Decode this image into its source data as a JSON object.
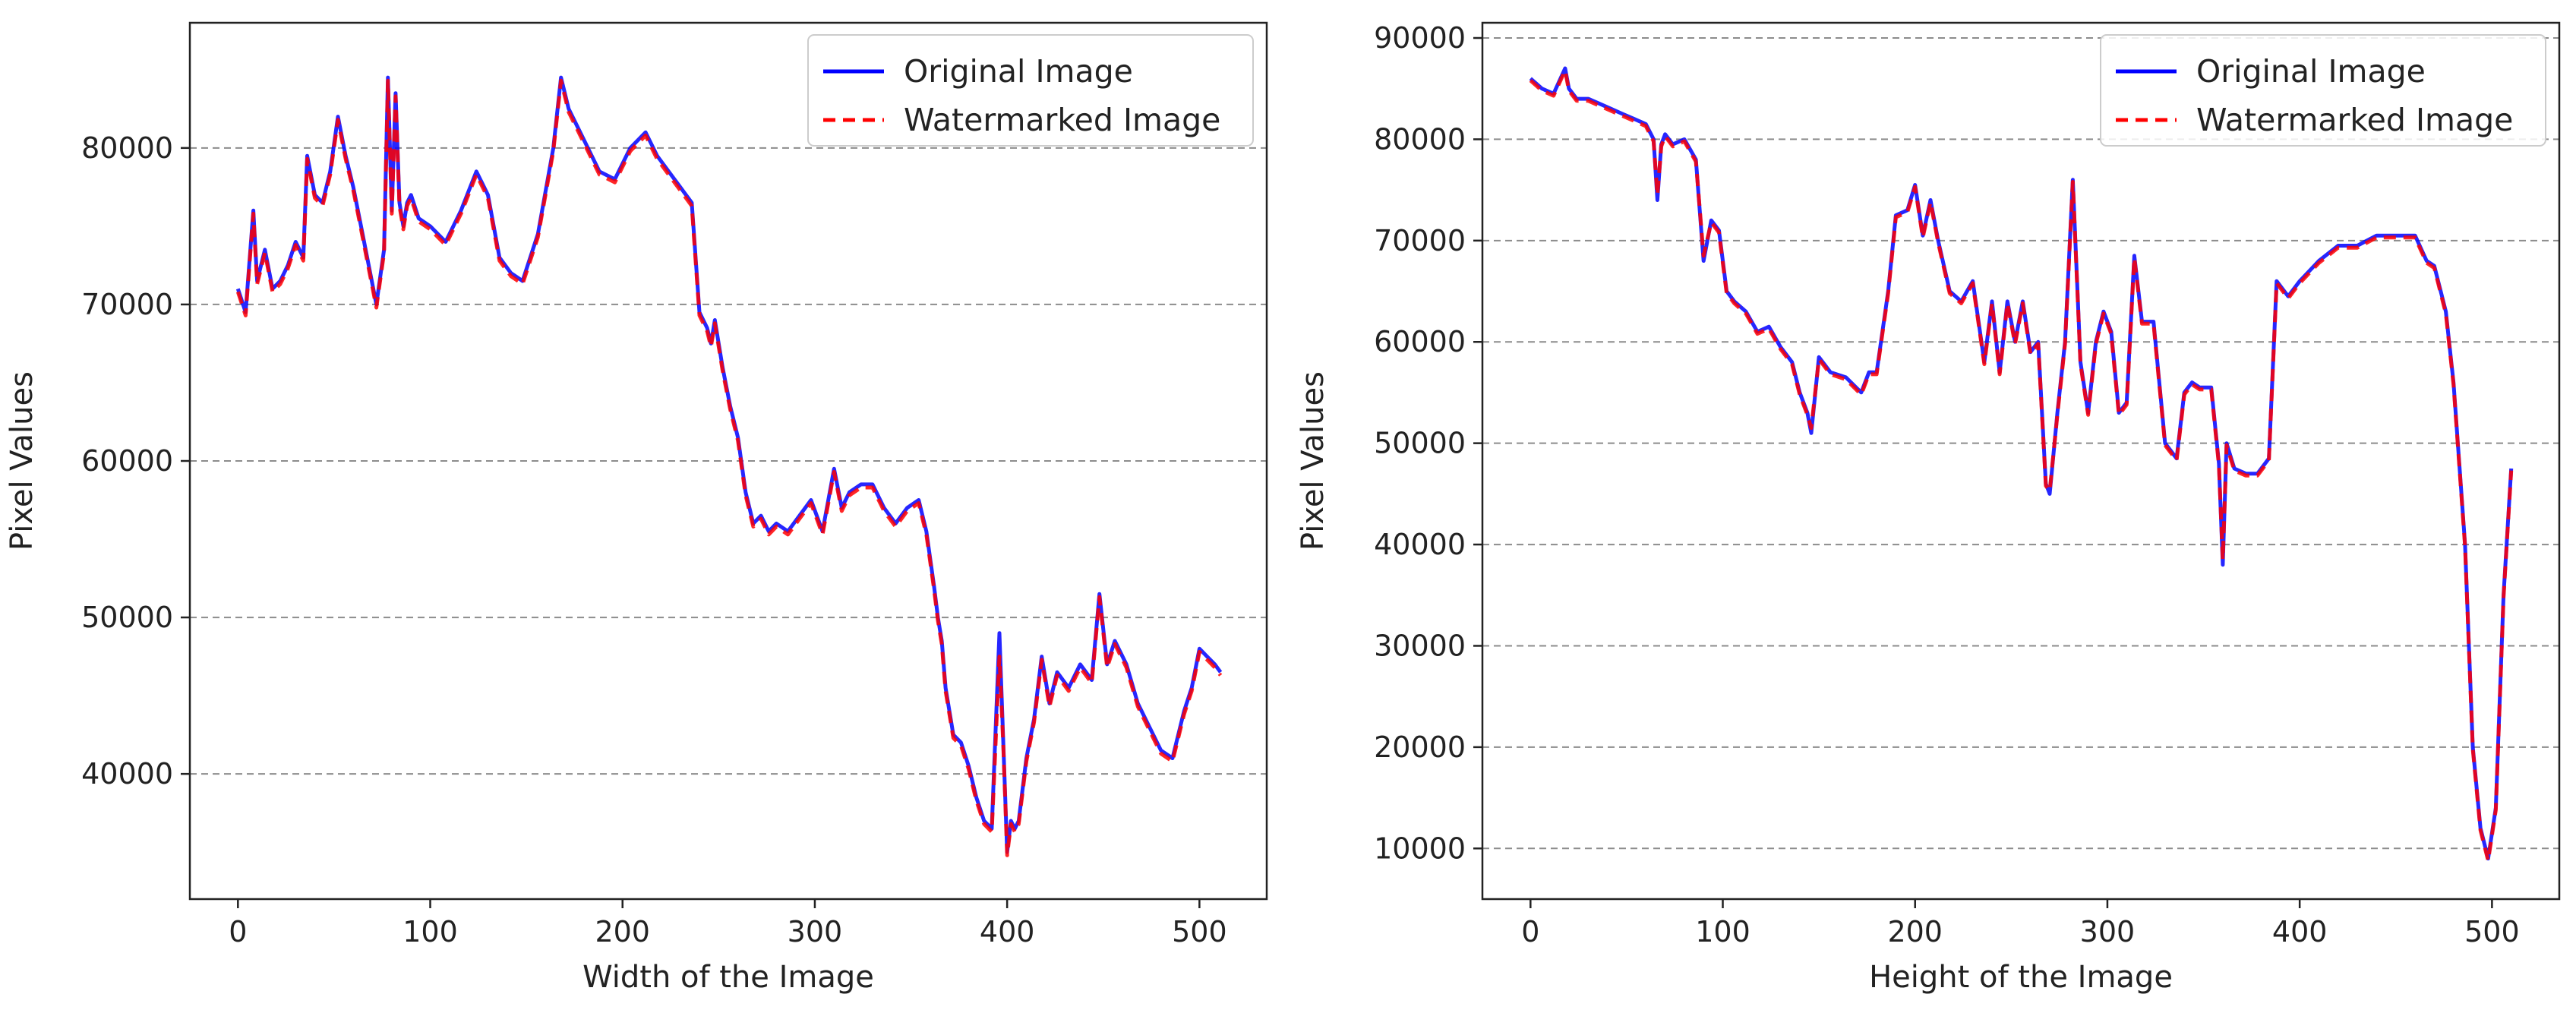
{
  "chart_data": [
    {
      "type": "line",
      "xlabel": "Width of the Image",
      "ylabel": "Pixel Values",
      "xlim": [
        -25,
        535
      ],
      "ylim": [
        32000,
        88000
      ],
      "xticks": [
        0,
        100,
        200,
        300,
        400,
        500
      ],
      "yticks": [
        40000,
        50000,
        60000,
        70000,
        80000
      ],
      "ytick_labels": [
        "40000",
        "50000",
        "60000",
        "70000",
        "80000"
      ],
      "grid": "horizontal dashed",
      "legend_position": "top-right",
      "series": [
        {
          "name": "Original Image",
          "color": "#0000ff",
          "style": "solid",
          "x": [
            0,
            4,
            8,
            10,
            14,
            18,
            22,
            26,
            30,
            34,
            36,
            40,
            44,
            48,
            52,
            56,
            60,
            64,
            68,
            72,
            76,
            78,
            80,
            82,
            84,
            86,
            88,
            90,
            94,
            100,
            108,
            116,
            124,
            130,
            136,
            142,
            148,
            156,
            164,
            168,
            172,
            180,
            188,
            196,
            204,
            212,
            218,
            224,
            230,
            236,
            240,
            244,
            246,
            248,
            252,
            256,
            260,
            264,
            268,
            272,
            276,
            280,
            286,
            292,
            298,
            304,
            310,
            314,
            318,
            324,
            330,
            336,
            342,
            348,
            354,
            358,
            362,
            364,
            366,
            368,
            372,
            376,
            380,
            384,
            388,
            392,
            396,
            398,
            400,
            402,
            404,
            406,
            410,
            414,
            418,
            422,
            426,
            432,
            438,
            444,
            448,
            452,
            456,
            462,
            468,
            474,
            480,
            486,
            492,
            496,
            500,
            504,
            508,
            511
          ],
          "y": [
            71000,
            69500,
            76000,
            71500,
            73500,
            71000,
            71500,
            72500,
            74000,
            73000,
            79500,
            77000,
            76500,
            78500,
            82000,
            79500,
            77500,
            75000,
            72500,
            70000,
            73500,
            84500,
            76000,
            83500,
            76500,
            75000,
            76500,
            77000,
            75500,
            75000,
            74000,
            76000,
            78500,
            77000,
            73000,
            72000,
            71500,
            74500,
            80000,
            84500,
            82500,
            80500,
            78500,
            78000,
            80000,
            81000,
            79500,
            78500,
            77500,
            76500,
            69500,
            68500,
            67500,
            69000,
            66000,
            63500,
            61500,
            58000,
            56000,
            56500,
            55500,
            56000,
            55500,
            56500,
            57500,
            55500,
            59500,
            57000,
            58000,
            58500,
            58500,
            57000,
            56000,
            57000,
            57500,
            55500,
            52000,
            50000,
            48500,
            45500,
            42500,
            42000,
            40500,
            38500,
            37000,
            36500,
            49000,
            42000,
            35000,
            37000,
            36500,
            37000,
            41000,
            43500,
            47500,
            44500,
            46500,
            45500,
            47000,
            46000,
            51500,
            47000,
            48500,
            47000,
            44500,
            43000,
            41500,
            41000,
            44000,
            45500,
            48000,
            47500,
            47000,
            46500
          ]
        },
        {
          "name": "Watermarked Image",
          "color": "#ff0000",
          "style": "dashed",
          "x": [
            0,
            4,
            8,
            10,
            14,
            18,
            22,
            26,
            30,
            34,
            36,
            40,
            44,
            48,
            52,
            56,
            60,
            64,
            68,
            72,
            76,
            78,
            80,
            82,
            84,
            86,
            88,
            90,
            94,
            100,
            108,
            116,
            124,
            130,
            136,
            142,
            148,
            156,
            164,
            168,
            172,
            180,
            188,
            196,
            204,
            212,
            218,
            224,
            230,
            236,
            240,
            244,
            246,
            248,
            252,
            256,
            260,
            264,
            268,
            272,
            276,
            280,
            286,
            292,
            298,
            304,
            310,
            314,
            318,
            324,
            330,
            336,
            342,
            348,
            354,
            358,
            362,
            364,
            366,
            368,
            372,
            376,
            380,
            384,
            388,
            392,
            396,
            398,
            400,
            402,
            404,
            406,
            410,
            414,
            418,
            422,
            426,
            432,
            438,
            444,
            448,
            452,
            456,
            462,
            468,
            474,
            480,
            486,
            492,
            496,
            500,
            504,
            508,
            511
          ],
          "y": [
            70800,
            69300,
            75800,
            71300,
            73300,
            70800,
            71300,
            72300,
            73800,
            72800,
            79300,
            76800,
            76300,
            78300,
            81800,
            79300,
            77300,
            74800,
            72300,
            69800,
            73300,
            84300,
            75800,
            83300,
            76300,
            74800,
            76300,
            76800,
            75300,
            74800,
            73800,
            75800,
            78300,
            76800,
            72800,
            71800,
            71300,
            74300,
            79800,
            84300,
            82300,
            80300,
            78300,
            77800,
            79800,
            80800,
            79300,
            78300,
            77300,
            76300,
            69300,
            68300,
            67300,
            68800,
            65800,
            63300,
            61300,
            57800,
            55800,
            56300,
            55300,
            55800,
            55300,
            56300,
            57300,
            55300,
            59300,
            56800,
            57800,
            58300,
            58300,
            56800,
            55800,
            56800,
            57300,
            55300,
            51800,
            49800,
            48300,
            45300,
            42300,
            41800,
            40300,
            38300,
            36800,
            36300,
            47500,
            41800,
            34800,
            36800,
            36300,
            36800,
            40800,
            43300,
            47300,
            44300,
            46300,
            45300,
            46800,
            45800,
            51300,
            46800,
            48300,
            46800,
            44300,
            42800,
            41300,
            40800,
            43800,
            45300,
            47800,
            47300,
            46800,
            46300
          ]
        }
      ]
    },
    {
      "type": "line",
      "xlabel": "Height of the Image",
      "ylabel": "Pixel Values",
      "xlim": [
        -25,
        535
      ],
      "ylim": [
        5000,
        91500
      ],
      "xticks": [
        0,
        100,
        200,
        300,
        400,
        500
      ],
      "yticks": [
        10000,
        20000,
        30000,
        40000,
        50000,
        60000,
        70000,
        80000,
        90000
      ],
      "ytick_labels": [
        "10000",
        "20000",
        "30000",
        "40000",
        "50000",
        "60000",
        "70000",
        "80000",
        "90000"
      ],
      "grid": "horizontal dashed",
      "legend_position": "top-right",
      "series": [
        {
          "name": "Original Image",
          "color": "#0000ff",
          "style": "solid",
          "x": [
            0,
            6,
            12,
            18,
            20,
            24,
            30,
            36,
            42,
            48,
            54,
            60,
            64,
            66,
            68,
            70,
            74,
            80,
            86,
            90,
            94,
            98,
            102,
            106,
            112,
            118,
            124,
            130,
            136,
            140,
            144,
            146,
            150,
            156,
            164,
            172,
            176,
            180,
            186,
            190,
            196,
            200,
            204,
            208,
            212,
            218,
            224,
            230,
            236,
            240,
            244,
            248,
            252,
            256,
            260,
            264,
            268,
            270,
            274,
            278,
            282,
            286,
            290,
            294,
            298,
            302,
            306,
            310,
            314,
            318,
            324,
            330,
            336,
            340,
            344,
            348,
            354,
            358,
            360,
            362,
            366,
            372,
            378,
            384,
            388,
            394,
            400,
            410,
            420,
            430,
            440,
            450,
            460,
            466,
            470,
            476,
            480,
            486,
            490,
            494,
            498,
            502,
            506,
            510
          ],
          "y": [
            86000,
            85000,
            84500,
            87000,
            85000,
            84000,
            84000,
            83500,
            83000,
            82500,
            82000,
            81500,
            80000,
            74000,
            79500,
            80500,
            79500,
            80000,
            78000,
            68000,
            72000,
            71000,
            65000,
            64000,
            63000,
            61000,
            61500,
            59500,
            58000,
            55000,
            53000,
            51000,
            58500,
            57000,
            56500,
            55000,
            57000,
            57000,
            65000,
            72500,
            73000,
            75500,
            70500,
            74000,
            70000,
            65000,
            64000,
            66000,
            58000,
            64000,
            57000,
            64000,
            60000,
            64000,
            59000,
            60000,
            46000,
            45000,
            53000,
            60000,
            76000,
            58000,
            53000,
            60000,
            63000,
            61000,
            53000,
            54000,
            68500,
            62000,
            62000,
            50000,
            48500,
            55000,
            56000,
            55500,
            55500,
            48000,
            38000,
            50000,
            47500,
            47000,
            47000,
            48500,
            66000,
            64500,
            66000,
            68000,
            69500,
            69500,
            70500,
            70500,
            70500,
            68000,
            67500,
            63000,
            56000,
            40000,
            20000,
            12000,
            9000,
            14000,
            35000,
            47500
          ]
        },
        {
          "name": "Watermarked Image",
          "color": "#ff0000",
          "style": "dashed",
          "x": [
            0,
            6,
            12,
            18,
            20,
            24,
            30,
            36,
            42,
            48,
            54,
            60,
            64,
            66,
            68,
            70,
            74,
            80,
            86,
            90,
            94,
            98,
            102,
            106,
            112,
            118,
            124,
            130,
            136,
            140,
            144,
            146,
            150,
            156,
            164,
            172,
            176,
            180,
            186,
            190,
            196,
            200,
            204,
            208,
            212,
            218,
            224,
            230,
            236,
            240,
            244,
            248,
            252,
            256,
            260,
            264,
            268,
            270,
            274,
            278,
            282,
            286,
            290,
            294,
            298,
            302,
            306,
            310,
            314,
            318,
            324,
            330,
            336,
            340,
            344,
            348,
            354,
            358,
            360,
            362,
            366,
            372,
            378,
            384,
            388,
            394,
            400,
            410,
            420,
            430,
            440,
            450,
            460,
            466,
            470,
            476,
            480,
            486,
            490,
            494,
            498,
            502,
            506,
            510
          ],
          "y": [
            85800,
            84800,
            84300,
            86800,
            84800,
            83800,
            83800,
            83300,
            82800,
            82300,
            81800,
            81300,
            79800,
            74500,
            79300,
            80300,
            79300,
            79800,
            77800,
            68500,
            71800,
            70800,
            64800,
            63800,
            62800,
            60800,
            61300,
            59300,
            57800,
            54800,
            52800,
            51500,
            58300,
            56800,
            56300,
            54800,
            56800,
            56800,
            64800,
            72300,
            72800,
            75300,
            70300,
            73800,
            69800,
            64800,
            63800,
            65800,
            57800,
            63800,
            56800,
            63800,
            59800,
            63800,
            58800,
            59800,
            45800,
            45300,
            52800,
            59800,
            75800,
            57800,
            52800,
            59800,
            62800,
            60800,
            52800,
            53800,
            68300,
            61800,
            61800,
            49800,
            48300,
            54800,
            55800,
            55300,
            55300,
            47800,
            38500,
            49800,
            47300,
            46800,
            46800,
            48300,
            65800,
            64300,
            65800,
            67800,
            69300,
            69300,
            70300,
            70300,
            70300,
            67800,
            67300,
            62800,
            55800,
            39800,
            19800,
            11800,
            8800,
            13800,
            34800,
            47300
          ]
        }
      ]
    }
  ]
}
